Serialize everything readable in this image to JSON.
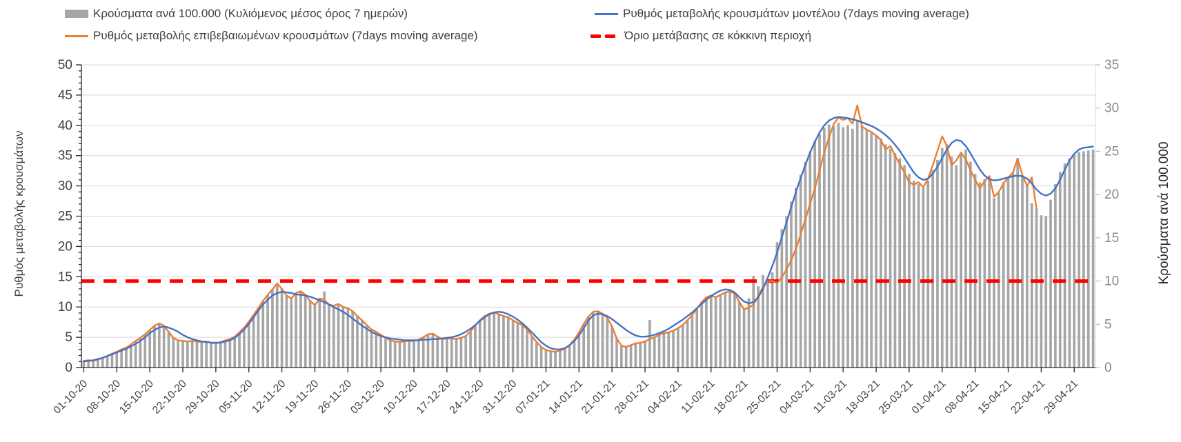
{
  "chart_data": {
    "type": "composite",
    "title": "",
    "left_axis": {
      "label": "Ρυθμός μεταβολής κρουσμάτων",
      "min": 0,
      "max": 50,
      "step": 5
    },
    "right_axis": {
      "label": "Κρούσματα ανά 100.000",
      "min": 0,
      "max": 35,
      "step": 5
    },
    "threshold": {
      "label": "Όριο μετάβασης σε κόκκινη περιοχή",
      "value": 10,
      "axis": "right",
      "color": "#FF0000"
    },
    "x_axis": {
      "days_total": 215,
      "tick_positions": [
        0,
        7,
        14,
        21,
        28,
        35,
        42,
        49,
        56,
        63,
        70,
        77,
        84,
        91,
        98,
        105,
        112,
        119,
        126,
        133,
        140,
        147,
        154,
        161,
        168,
        175,
        182,
        189,
        196,
        203,
        210
      ],
      "tick_labels": [
        "01-10-20",
        "08-10-20",
        "15-10-20",
        "22-10-20",
        "29-10-20",
        "05-11-20",
        "12-11-20",
        "19-11-20",
        "26-11-20",
        "03-12-20",
        "10-12-20",
        "17-12-20",
        "24-12-20",
        "31-12-20",
        "07-01-21",
        "14-01-21",
        "21-01-21",
        "28-01-21",
        "04-02-21",
        "11-02-21",
        "18-02-21",
        "25-02-21",
        "04-03-21",
        "11-03-21",
        "18-03-21",
        "25-03-21",
        "01-04-21",
        "08-04-21",
        "15-04-21",
        "22-04-21",
        "29-04-21"
      ]
    },
    "grid_color": "#D9D9D9",
    "series": [
      {
        "id": "cases-bars",
        "name": "Κρούσματα ανά 100.000 (Κυλιόμενος μέσος όρος 7 ημερών)",
        "type": "bar",
        "axis": "right",
        "color": "#A6A6A6",
        "values": [
          0.8,
          0.7,
          0.8,
          0.9,
          1.1,
          1.3,
          1.6,
          1.8,
          2.1,
          2.3,
          2.7,
          3.1,
          3.4,
          3.9,
          4.3,
          4.8,
          5.1,
          4.8,
          4.1,
          3.4,
          3.2,
          3.1,
          3.0,
          3.1,
          3.0,
          2.9,
          3.0,
          2.9,
          2.8,
          2.9,
          3.2,
          3.3,
          3.6,
          4.1,
          4.6,
          5.3,
          6.1,
          6.9,
          7.7,
          8.4,
          9.0,
          9.7,
          9.1,
          8.3,
          8.0,
          8.6,
          8.8,
          8.4,
          7.7,
          7.2,
          8.0,
          8.8,
          7.3,
          7.1,
          7.4,
          7.0,
          6.9,
          6.5,
          6.0,
          5.5,
          4.9,
          4.4,
          4.1,
          3.8,
          3.4,
          3.2,
          3.0,
          2.9,
          3.0,
          3.1,
          3.1,
          3.2,
          3.5,
          3.9,
          3.9,
          3.6,
          3.3,
          3.4,
          3.4,
          3.3,
          3.4,
          3.6,
          4.2,
          4.8,
          5.5,
          6.0,
          6.2,
          6.4,
          6.2,
          6.0,
          5.8,
          5.5,
          5.2,
          4.9,
          4.4,
          3.6,
          2.9,
          2.4,
          2.0,
          1.9,
          1.8,
          2.0,
          2.2,
          2.6,
          3.2,
          4.1,
          5.0,
          5.9,
          6.4,
          6.5,
          6.2,
          5.7,
          4.8,
          3.4,
          2.5,
          2.4,
          2.6,
          2.8,
          2.9,
          3.0,
          5.5,
          3.5,
          3.8,
          4.0,
          4.1,
          4.3,
          4.6,
          4.9,
          5.5,
          6.1,
          6.8,
          7.6,
          8.1,
          8.3,
          8.1,
          8.4,
          8.7,
          8.8,
          8.6,
          7.6,
          6.8,
          8.0,
          10.6,
          9.4,
          10.7,
          10.2,
          11.0,
          14.5,
          16.0,
          17.5,
          19.2,
          20.8,
          22.3,
          23.8,
          25.0,
          26.2,
          27.0,
          27.7,
          28.1,
          27.9,
          28.3,
          27.8,
          28.0,
          27.6,
          28.6,
          27.9,
          27.5,
          27.1,
          26.9,
          26.5,
          25.8,
          25.3,
          24.8,
          24.2,
          23.4,
          22.4,
          21.6,
          21.2,
          20.8,
          21.6,
          22.8,
          24.0,
          25.4,
          25.8,
          24.4,
          23.4,
          24.6,
          25.2,
          23.8,
          22.4,
          21.4,
          21.8,
          22.2,
          19.6,
          20.2,
          21.4,
          22.0,
          22.6,
          24.2,
          22.2,
          21.0,
          19.0,
          18.4,
          17.6,
          17.5,
          19.4,
          21.2,
          22.6,
          23.6,
          24.2,
          24.6,
          24.9,
          25.0,
          25.1,
          25.2
        ]
      },
      {
        "id": "confirmed-rate-line",
        "name": "Ρυθμός μεταβολής επιβεβαιωμένων κρουσμάτων (7days moving average)",
        "type": "line",
        "axis": "left",
        "color": "#ED7D31",
        "values": [
          1.1,
          1.2,
          1.1,
          1.3,
          1.6,
          1.9,
          2.3,
          2.6,
          3.0,
          3.3,
          3.8,
          4.4,
          4.9,
          5.5,
          6.2,
          6.9,
          7.3,
          6.9,
          5.9,
          4.9,
          4.5,
          4.4,
          4.3,
          4.4,
          4.3,
          4.2,
          4.3,
          4.1,
          4.0,
          4.2,
          4.5,
          4.7,
          5.1,
          5.8,
          6.6,
          7.6,
          8.7,
          9.8,
          11.0,
          12.0,
          12.9,
          13.9,
          13.0,
          11.9,
          11.4,
          12.3,
          12.6,
          12.0,
          11.0,
          10.3,
          11.4,
          11.2,
          10.4,
          10.2,
          10.5,
          10.0,
          9.8,
          9.3,
          8.5,
          7.8,
          7.0,
          6.3,
          5.9,
          5.4,
          4.9,
          4.5,
          4.3,
          4.2,
          4.3,
          4.4,
          4.4,
          4.6,
          5.0,
          5.5,
          5.6,
          5.1,
          4.7,
          4.8,
          4.8,
          4.7,
          4.9,
          5.2,
          6.0,
          6.9,
          7.8,
          8.5,
          8.9,
          9.1,
          8.8,
          8.5,
          8.3,
          7.8,
          7.4,
          7.0,
          6.3,
          5.2,
          4.2,
          3.4,
          2.9,
          2.7,
          2.6,
          2.8,
          3.1,
          3.7,
          4.6,
          5.8,
          7.2,
          8.4,
          9.2,
          9.3,
          8.9,
          8.2,
          6.8,
          4.8,
          3.6,
          3.4,
          3.7,
          4.0,
          4.1,
          4.3,
          4.7,
          5.0,
          5.4,
          5.7,
          5.8,
          6.1,
          6.5,
          7.0,
          7.8,
          8.7,
          9.7,
          10.8,
          11.6,
          11.9,
          11.6,
          12.0,
          12.4,
          12.6,
          12.2,
          10.8,
          9.6,
          9.9,
          10.4,
          11.8,
          13.3,
          14.2,
          14.3,
          13.9,
          14.9,
          16.2,
          17.7,
          19.6,
          22.0,
          24.5,
          27.0,
          29.6,
          32.5,
          35.5,
          38.0,
          40.2,
          41.3,
          40.9,
          41.2,
          40.3,
          43.3,
          39.8,
          39.3,
          38.9,
          38.3,
          37.6,
          36.0,
          36.6,
          35.0,
          33.6,
          32.2,
          30.6,
          30.2,
          30.6,
          29.8,
          31.2,
          33.4,
          35.8,
          38.2,
          36.6,
          33.4,
          34.2,
          35.5,
          34.4,
          32.6,
          31.0,
          29.6,
          30.8,
          31.6,
          28.2,
          29.0,
          30.4,
          31.4,
          32.2,
          34.5,
          31.8,
          30.0,
          31.4,
          26.3,
          null,
          null,
          null,
          null,
          null,
          null,
          null,
          null,
          null,
          null,
          null,
          null
        ]
      },
      {
        "id": "model-rate-line",
        "name": "Ρυθμός μεταβολής κρουσμάτων μοντέλου (7days moving average)",
        "type": "line",
        "axis": "left",
        "color": "#4472C4",
        "values": [
          1.0,
          1.1,
          1.2,
          1.4,
          1.6,
          1.9,
          2.2,
          2.5,
          2.8,
          3.1,
          3.5,
          3.9,
          4.4,
          5.0,
          5.7,
          6.2,
          6.6,
          6.8,
          6.6,
          6.3,
          5.9,
          5.4,
          5.0,
          4.7,
          4.5,
          4.3,
          4.2,
          4.1,
          4.1,
          4.1,
          4.3,
          4.5,
          4.9,
          5.5,
          6.3,
          7.2,
          8.3,
          9.4,
          10.4,
          11.2,
          11.9,
          12.3,
          12.5,
          12.4,
          12.3,
          12.1,
          12.0,
          11.9,
          11.7,
          11.4,
          11.1,
          10.8,
          10.4,
          10.0,
          9.6,
          9.2,
          8.7,
          8.1,
          7.5,
          6.9,
          6.4,
          5.9,
          5.5,
          5.2,
          5.0,
          4.8,
          4.7,
          4.6,
          4.5,
          4.5,
          4.5,
          4.5,
          4.6,
          4.6,
          4.7,
          4.7,
          4.8,
          4.9,
          5.0,
          5.2,
          5.5,
          5.9,
          6.4,
          7.0,
          7.7,
          8.3,
          8.8,
          9.1,
          9.2,
          9.1,
          8.8,
          8.4,
          7.9,
          7.3,
          6.6,
          5.8,
          5.0,
          4.2,
          3.6,
          3.2,
          3.0,
          3.0,
          3.2,
          3.7,
          4.4,
          5.3,
          6.5,
          7.8,
          8.6,
          8.9,
          8.8,
          8.5,
          8.0,
          7.4,
          6.8,
          6.2,
          5.7,
          5.3,
          5.1,
          5.1,
          5.2,
          5.4,
          5.7,
          6.0,
          6.4,
          6.9,
          7.4,
          7.9,
          8.5,
          9.1,
          9.8,
          10.5,
          11.2,
          11.8,
          12.3,
          12.7,
          12.9,
          12.8,
          12.4,
          11.6,
          10.9,
          10.6,
          10.8,
          11.6,
          13.0,
          14.8,
          16.8,
          19.0,
          21.5,
          24.0,
          26.5,
          29.0,
          31.3,
          33.5,
          35.5,
          37.3,
          38.8,
          40.0,
          40.8,
          41.2,
          41.4,
          41.3,
          41.2,
          41.0,
          40.8,
          40.5,
          40.2,
          39.9,
          39.5,
          39.0,
          38.4,
          37.7,
          36.8,
          35.8,
          34.6,
          33.4,
          32.2,
          31.4,
          31.0,
          31.2,
          32.0,
          33.2,
          34.6,
          36.0,
          37.1,
          37.6,
          37.4,
          36.6,
          35.4,
          34.0,
          32.7,
          31.7,
          31.1,
          30.9,
          31.0,
          31.2,
          31.4,
          31.6,
          31.7,
          31.6,
          31.2,
          30.4,
          29.4,
          28.7,
          28.4,
          28.7,
          29.6,
          31.0,
          32.7,
          34.2,
          35.3,
          36.0,
          36.3,
          36.4,
          36.5
        ]
      }
    ]
  }
}
